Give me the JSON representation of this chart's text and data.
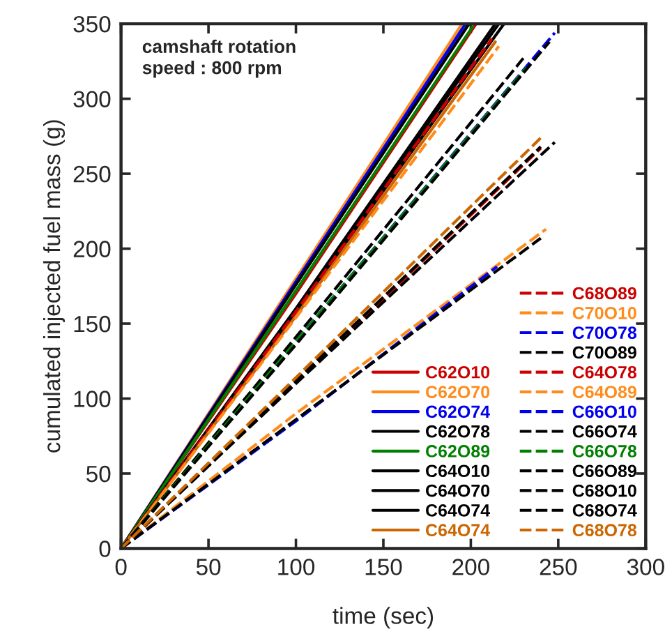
{
  "chart_data": {
    "type": "line",
    "xlabel": "time (sec)",
    "ylabel": "cumulated injected fuel mass (g)",
    "annotations": [
      "camshaft rotation\nspeed : 800 rpm"
    ],
    "xlim": [
      0,
      300
    ],
    "ylim": [
      0,
      350
    ],
    "xticks": [
      0,
      50,
      100,
      150,
      200,
      250,
      300
    ],
    "yticks": [
      0,
      50,
      100,
      150,
      200,
      250,
      300,
      350
    ],
    "grid": false,
    "legend": "bottom right",
    "series": [
      {
        "name": "C62O10",
        "color": "#cc0000",
        "line_style": "solid",
        "x": [
          0,
          100,
          203
        ],
        "values": [
          0,
          170,
          350
        ]
      },
      {
        "name": "C62O70",
        "color": "#ff8c1a",
        "line_style": "solid",
        "x": [
          0,
          100,
          195
        ],
        "values": [
          0,
          180,
          350
        ]
      },
      {
        "name": "C62O74",
        "color": "#0000ee",
        "line_style": "solid",
        "x": [
          0,
          100,
          197
        ],
        "values": [
          0,
          178,
          350
        ]
      },
      {
        "name": "C62O78",
        "color": "#000000",
        "line_style": "solid",
        "x": [
          0,
          100,
          199
        ],
        "values": [
          0,
          176,
          350
        ]
      },
      {
        "name": "C62O89",
        "color": "#008000",
        "line_style": "solid",
        "x": [
          0,
          100,
          201
        ],
        "values": [
          0,
          172,
          348
        ]
      },
      {
        "name": "C64O10",
        "color": "#000000",
        "line_style": "solid",
        "x": [
          0,
          100,
          214
        ],
        "values": [
          0,
          160,
          350
        ]
      },
      {
        "name": "C64O70",
        "color": "#000000",
        "line_style": "solid",
        "x": [
          0,
          100,
          219
        ],
        "values": [
          0,
          158,
          350
        ]
      },
      {
        "name": "C64O74",
        "color": "#000000",
        "line_style": "solid",
        "x": [
          0,
          100,
          216
        ],
        "values": [
          0,
          159,
          350
        ]
      },
      {
        "name": "C64O74",
        "color": "#cc6600",
        "line_style": "solid",
        "x": [
          0,
          100,
          214
        ],
        "values": [
          0,
          155,
          338
        ]
      },
      {
        "name": "C68O89",
        "color": "#cc0000",
        "line_style": "dashed",
        "x": [
          0,
          100,
          240
        ],
        "values": [
          0,
          111,
          267
        ]
      },
      {
        "name": "C70O10",
        "color": "#ff8c1a",
        "line_style": "dashed",
        "x": [
          0,
          100,
          243
        ],
        "values": [
          0,
          90,
          213
        ]
      },
      {
        "name": "C70O78",
        "color": "#0000ee",
        "line_style": "dashed",
        "x": [
          0,
          100,
          215
        ],
        "values": [
          0,
          85,
          188
        ]
      },
      {
        "name": "C70O89",
        "color": "#000000",
        "line_style": "dashed",
        "x": [
          0,
          100,
          240
        ],
        "values": [
          0,
          86,
          207
        ]
      },
      {
        "name": "C64O78",
        "color": "#cc0000",
        "line_style": "dashed",
        "x": [
          0,
          100,
          212
        ],
        "values": [
          0,
          158,
          340
        ]
      },
      {
        "name": "C64O89",
        "color": "#ff8c1a",
        "line_style": "dashed",
        "x": [
          0,
          100,
          216
        ],
        "values": [
          0,
          154,
          335
        ]
      },
      {
        "name": "C66O10",
        "color": "#0000ee",
        "line_style": "dashed",
        "x": [
          0,
          100,
          248
        ],
        "values": [
          0,
          138,
          344
        ]
      },
      {
        "name": "C66O74",
        "color": "#000000",
        "line_style": "dashed",
        "x": [
          0,
          100,
          230
        ],
        "values": [
          0,
          141,
          327
        ]
      },
      {
        "name": "C66O78",
        "color": "#008000",
        "line_style": "dashed",
        "x": [
          0,
          100,
          232
        ],
        "values": [
          0,
          138,
          321
        ]
      },
      {
        "name": "C66O89",
        "color": "#000000",
        "line_style": "dashed",
        "x": [
          0,
          100,
          245
        ],
        "values": [
          0,
          136,
          338
        ]
      },
      {
        "name": "C68O10",
        "color": "#000000",
        "line_style": "dashed",
        "x": [
          0,
          100,
          248
        ],
        "values": [
          0,
          110,
          271
        ]
      },
      {
        "name": "C68O74",
        "color": "#000000",
        "line_style": "dashed",
        "x": [
          0,
          100,
          240
        ],
        "values": [
          0,
          112,
          268
        ]
      },
      {
        "name": "C68O78",
        "color": "#cc6600",
        "line_style": "dashed",
        "x": [
          0,
          100,
          241
        ],
        "values": [
          0,
          114,
          275
        ]
      }
    ]
  }
}
